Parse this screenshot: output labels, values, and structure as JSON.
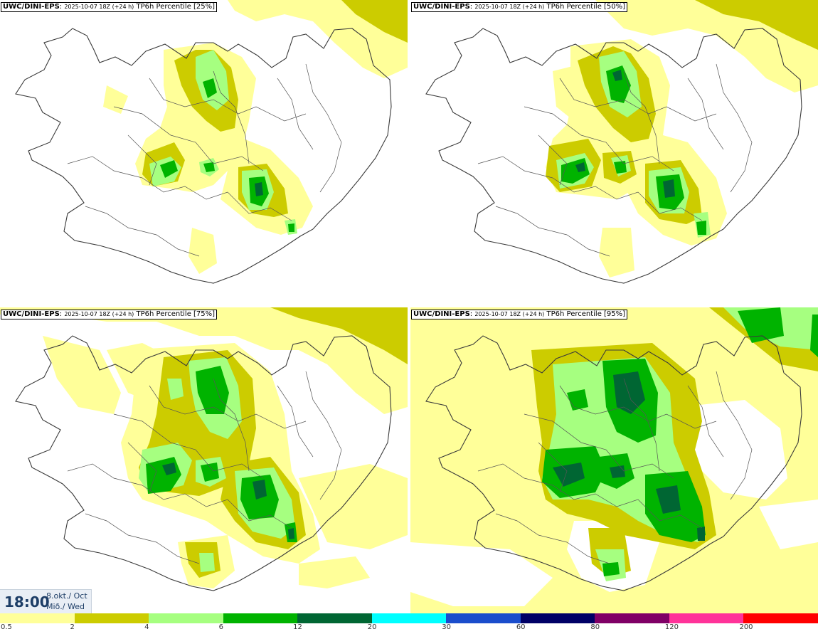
{
  "panels": [
    {
      "model": "UWC/DINI-EPS",
      "timestamp": "2025-10-07 18Z (+24 h)",
      "product": "TP6h Percentile [25%]"
    },
    {
      "model": "UWC/DINI-EPS",
      "timestamp": "2025-10-07 18Z (+24 h)",
      "product": "TP6h Percentile [50%]"
    },
    {
      "model": "UWC/DINI-EPS",
      "timestamp": "2025-10-07 18Z (+24 h)",
      "product": "TP6h Percentile [75%]"
    },
    {
      "model": "UWC/DINI-EPS",
      "timestamp": "2025-10-07 18Z (+24 h)",
      "product": "TP6h Percentile [95%]"
    }
  ],
  "valid_time": {
    "time": "18:00",
    "date": "8.okt./ Oct",
    "day": "Mið./ Wed"
  },
  "colorbar": {
    "colors": [
      "#ffff99",
      "#cccc00",
      "#a6ff80",
      "#00b300",
      "#006633",
      "#00ffff",
      "#1a4dcc",
      "#000066",
      "#800066",
      "#ff3399",
      "#ff0000"
    ],
    "labels": [
      "0.5",
      "2",
      "4",
      "6",
      "12",
      "20",
      "30",
      "60",
      "80",
      "120",
      "200"
    ]
  }
}
